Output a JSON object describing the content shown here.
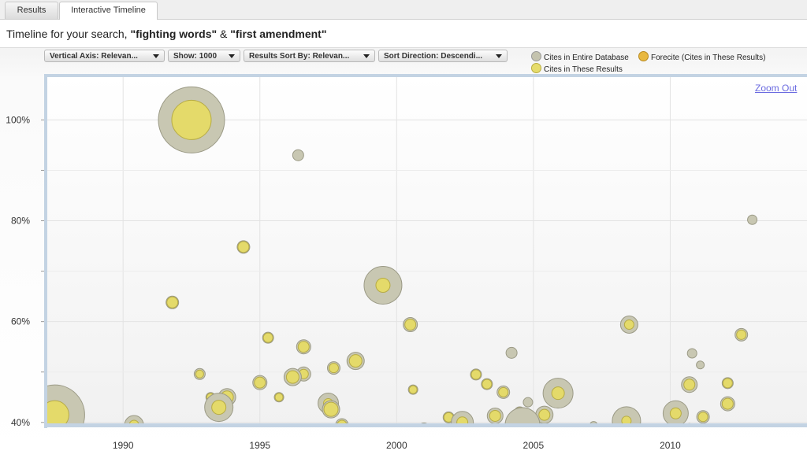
{
  "tabs": [
    {
      "label": "Results"
    },
    {
      "label": "Interactive Timeline"
    }
  ],
  "headline": {
    "prefix": "Timeline for your search, ",
    "term1": "\"fighting words\"",
    "connector": " & ",
    "term2": "\"first amendment\""
  },
  "toolbar": {
    "vertical_axis": "Vertical Axis: Relevan...",
    "show": "Show: 1000",
    "sort_by": "Results Sort By: Relevan...",
    "sort_direction": "Sort Direction: Descendi..."
  },
  "legend": [
    {
      "label": "Cites in Entire Database",
      "color": "#c4c3ae"
    },
    {
      "label": "Forecite (Cites in These Results)",
      "color": "#e8b840"
    },
    {
      "label": "Cites in These Results",
      "color": "#e6dc6c"
    }
  ],
  "zoom_label": "Zoom Out",
  "chart_data": {
    "type": "scatter",
    "x_ticks": [
      "1990",
      "1995",
      "2000",
      "2005",
      "2010"
    ],
    "y_ticks": [
      "40%",
      "60%",
      "80%",
      "100%"
    ],
    "xlim": [
      1987.2,
      2015.0
    ],
    "ylim": [
      39.5,
      108.8
    ],
    "grid": true,
    "points": [
      {
        "x": 1992.5,
        "y": 100.0,
        "outer": 42,
        "inner": 25
      },
      {
        "x": 1987.5,
        "y": 41.5,
        "outer": 38,
        "inner": 18
      },
      {
        "x": 1996.4,
        "y": 93.0,
        "outer": 7,
        "inner": 0
      },
      {
        "x": 1994.4,
        "y": 74.8,
        "outer": 8,
        "inner": 7
      },
      {
        "x": 1991.8,
        "y": 63.8,
        "outer": 8,
        "inner": 7
      },
      {
        "x": 1999.5,
        "y": 67.2,
        "outer": 24,
        "inner": 9
      },
      {
        "x": 2013.0,
        "y": 80.2,
        "outer": 6,
        "inner": 0
      },
      {
        "x": 2000.5,
        "y": 59.4,
        "outer": 9,
        "inner": 7
      },
      {
        "x": 2008.5,
        "y": 59.4,
        "outer": 11,
        "inner": 6
      },
      {
        "x": 2012.6,
        "y": 57.4,
        "outer": 8,
        "inner": 6
      },
      {
        "x": 1995.3,
        "y": 56.8,
        "outer": 7,
        "inner": 6
      },
      {
        "x": 1996.6,
        "y": 55.0,
        "outer": 9,
        "inner": 7
      },
      {
        "x": 2004.2,
        "y": 53.8,
        "outer": 7,
        "inner": 0
      },
      {
        "x": 2010.8,
        "y": 53.7,
        "outer": 6,
        "inner": 0
      },
      {
        "x": 1998.5,
        "y": 52.2,
        "outer": 11,
        "inner": 8
      },
      {
        "x": 2011.1,
        "y": 51.4,
        "outer": 5,
        "inner": 0
      },
      {
        "x": 1997.7,
        "y": 50.8,
        "outer": 8,
        "inner": 6
      },
      {
        "x": 1992.8,
        "y": 49.6,
        "outer": 7,
        "inner": 5
      },
      {
        "x": 1996.6,
        "y": 49.6,
        "outer": 9,
        "inner": 6
      },
      {
        "x": 1996.2,
        "y": 49.0,
        "outer": 11,
        "inner": 8
      },
      {
        "x": 2002.9,
        "y": 49.5,
        "outer": 7,
        "inner": 6
      },
      {
        "x": 2003.3,
        "y": 47.6,
        "outer": 7,
        "inner": 6
      },
      {
        "x": 1995.0,
        "y": 47.9,
        "outer": 9,
        "inner": 7
      },
      {
        "x": 2010.7,
        "y": 47.5,
        "outer": 10,
        "inner": 7
      },
      {
        "x": 2012.1,
        "y": 47.8,
        "outer": 7,
        "inner": 6
      },
      {
        "x": 2000.6,
        "y": 46.5,
        "outer": 6,
        "inner": 5
      },
      {
        "x": 2003.9,
        "y": 46.0,
        "outer": 8,
        "inner": 6
      },
      {
        "x": 2005.9,
        "y": 45.8,
        "outer": 19,
        "inner": 8
      },
      {
        "x": 1993.8,
        "y": 45.0,
        "outer": 11,
        "inner": 8
      },
      {
        "x": 1993.2,
        "y": 45.0,
        "outer": 6,
        "inner": 5
      },
      {
        "x": 1995.7,
        "y": 45.0,
        "outer": 6,
        "inner": 5
      },
      {
        "x": 1993.5,
        "y": 43.0,
        "outer": 18,
        "inner": 9
      },
      {
        "x": 1997.5,
        "y": 43.8,
        "outer": 13,
        "inner": 6
      },
      {
        "x": 1997.6,
        "y": 42.6,
        "outer": 11,
        "inner": 9
      },
      {
        "x": 2004.8,
        "y": 44.0,
        "outer": 6,
        "inner": 0
      },
      {
        "x": 2012.1,
        "y": 43.7,
        "outer": 9,
        "inner": 7
      },
      {
        "x": 2010.2,
        "y": 41.8,
        "outer": 16,
        "inner": 7
      },
      {
        "x": 2004.5,
        "y": 42.0,
        "outer": 7,
        "inner": 6
      },
      {
        "x": 2005.4,
        "y": 41.5,
        "outer": 11,
        "inner": 7
      },
      {
        "x": 2003.6,
        "y": 41.3,
        "outer": 10,
        "inner": 7
      },
      {
        "x": 2001.9,
        "y": 41.0,
        "outer": 7,
        "inner": 6
      },
      {
        "x": 2011.2,
        "y": 41.1,
        "outer": 8,
        "inner": 6
      },
      {
        "x": 2002.4,
        "y": 40.0,
        "outer": 14,
        "inner": 7
      },
      {
        "x": 1990.4,
        "y": 39.5,
        "outer": 12,
        "inner": 6
      },
      {
        "x": 2008.4,
        "y": 40.3,
        "outer": 18,
        "inner": 6
      },
      {
        "x": 2004.6,
        "y": 39.5,
        "outer": 22,
        "inner": 0
      },
      {
        "x": 1998.0,
        "y": 39.5,
        "outer": 8,
        "inner": 6
      },
      {
        "x": 2001.0,
        "y": 38.8,
        "outer": 7,
        "inner": 0
      },
      {
        "x": 1992.8,
        "y": 38.8,
        "outer": 6,
        "inner": 0
      },
      {
        "x": 2006.9,
        "y": 38.8,
        "outer": 6,
        "inner": 0
      },
      {
        "x": 2007.2,
        "y": 39.4,
        "outer": 5,
        "inner": 0
      },
      {
        "x": 2008.9,
        "y": 39.0,
        "outer": 5,
        "inner": 0
      },
      {
        "x": 2010.7,
        "y": 39.0,
        "outer": 5,
        "inner": 0
      }
    ]
  }
}
